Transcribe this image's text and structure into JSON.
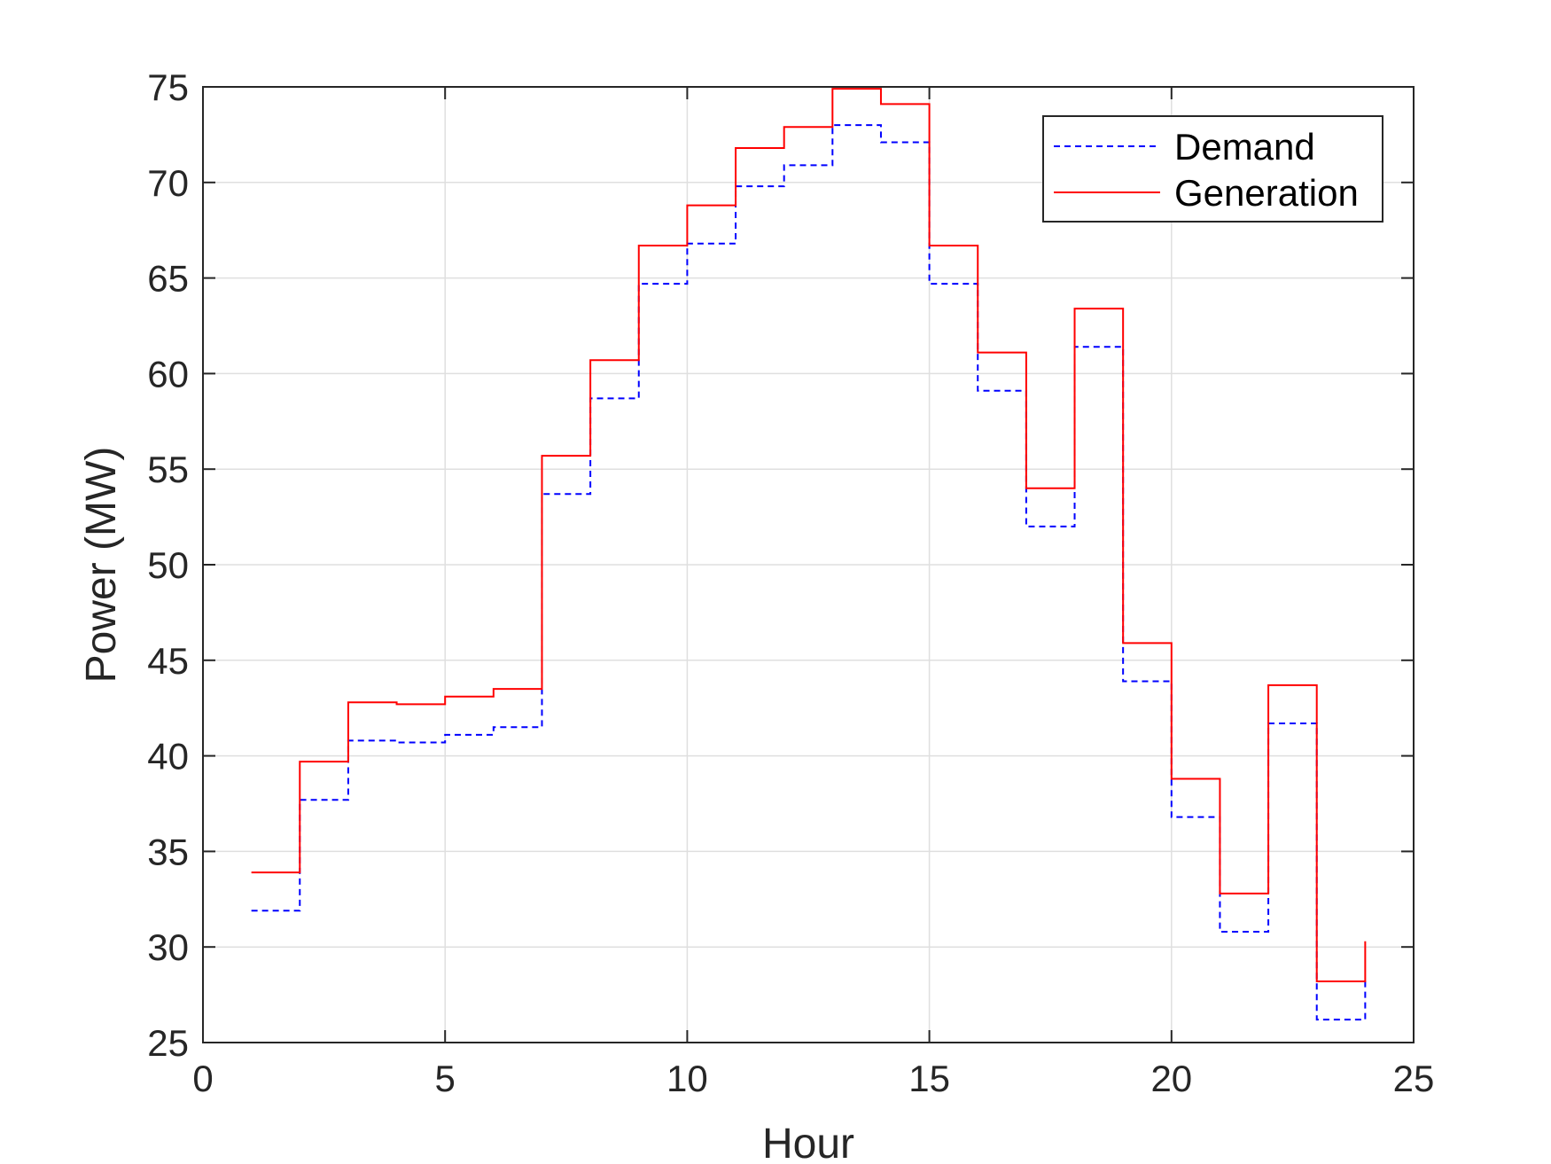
{
  "chart_data": {
    "type": "line",
    "step": "post",
    "title": "",
    "xlabel": "Hour",
    "ylabel": "Power (MW)",
    "xlim": [
      0,
      25
    ],
    "ylim": [
      25,
      75
    ],
    "xticks": [
      0,
      5,
      10,
      15,
      20,
      25
    ],
    "yticks": [
      25,
      30,
      35,
      40,
      45,
      50,
      55,
      60,
      65,
      70,
      75
    ],
    "grid": true,
    "legend_position": "top-right",
    "x": [
      1,
      2,
      3,
      4,
      5,
      6,
      7,
      8,
      9,
      10,
      11,
      12,
      13,
      14,
      15,
      16,
      17,
      18,
      19,
      20,
      21,
      22,
      23,
      24
    ],
    "series": [
      {
        "name": "Demand",
        "color": "#0000ff",
        "style": "dashed",
        "values": [
          31.9,
          37.7,
          40.8,
          40.7,
          41.1,
          41.5,
          53.7,
          58.7,
          64.7,
          66.8,
          69.8,
          70.9,
          73.0,
          72.1,
          64.7,
          59.1,
          52.0,
          61.4,
          43.9,
          36.8,
          30.8,
          41.7,
          26.2,
          28.3
        ]
      },
      {
        "name": "Generation",
        "color": "#ff0000",
        "style": "solid",
        "values": [
          33.9,
          39.7,
          42.8,
          42.7,
          43.1,
          43.5,
          55.7,
          60.7,
          66.7,
          68.8,
          71.8,
          72.9,
          74.9,
          74.1,
          66.7,
          61.1,
          54.0,
          63.4,
          45.9,
          38.8,
          32.8,
          43.7,
          28.2,
          30.3
        ]
      }
    ]
  }
}
